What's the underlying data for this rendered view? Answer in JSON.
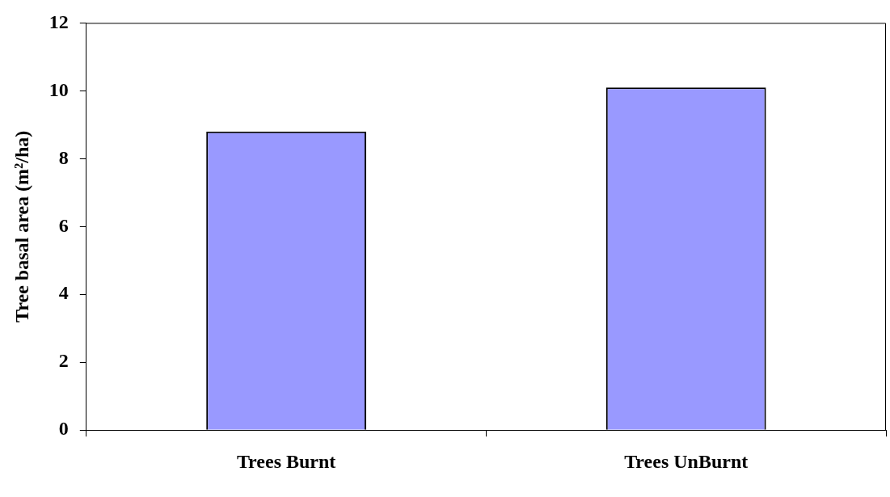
{
  "chart_data": {
    "type": "bar",
    "ylabel": "Tree basal area (m²/ha)",
    "categories": [
      "Trees Burnt",
      "Trees UnBurnt"
    ],
    "series": [
      {
        "color": "#9999ff",
        "values": [
          8.8,
          10.1
        ]
      }
    ],
    "ylim": [
      0,
      12
    ],
    "yticks": [
      0,
      2,
      4,
      6,
      8,
      10,
      12
    ],
    "grid": false,
    "legend": false
  }
}
